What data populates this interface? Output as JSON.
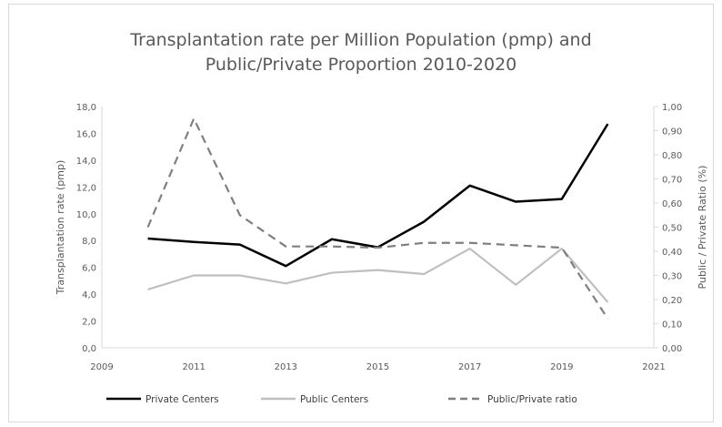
{
  "chart_data": {
    "type": "line",
    "title": [
      "Transplantation rate per Million Population (pmp) and",
      "Public/Private Proportion 2010-2020"
    ],
    "xlabel": "",
    "ylabel": "Transplantation rate (pmp)",
    "y2label": "Public / Private Ratio (%)",
    "xlim": [
      2009,
      2021
    ],
    "ylim": [
      0,
      18
    ],
    "y2lim": [
      0,
      1
    ],
    "x_ticks": [
      "2009",
      "2011",
      "2013",
      "2015",
      "2017",
      "2019",
      "2021"
    ],
    "y_ticks": [
      "0,0",
      "2,0",
      "4,0",
      "6,0",
      "8,0",
      "10,0",
      "12,0",
      "14,0",
      "16,0",
      "18,0"
    ],
    "y2_ticks": [
      "0,00",
      "0,10",
      "0,20",
      "0,30",
      "0,40",
      "0,50",
      "0,60",
      "0,70",
      "0,80",
      "0,90",
      "1,00"
    ],
    "x": [
      2010,
      2011,
      2012,
      2013,
      2014,
      2015,
      2016,
      2017,
      2018,
      2019,
      2020
    ],
    "series": [
      {
        "name": "Private Centers",
        "axis": "left",
        "color": "#000000",
        "dash": false,
        "values": [
          8.15,
          7.9,
          7.7,
          6.1,
          8.1,
          7.5,
          9.4,
          12.1,
          10.9,
          11.1,
          16.7
        ]
      },
      {
        "name": "Public Centers",
        "axis": "left",
        "color": "#bfbfbf",
        "dash": false,
        "values": [
          4.35,
          5.4,
          5.4,
          4.8,
          5.6,
          5.8,
          5.5,
          7.4,
          4.7,
          7.4,
          3.4
        ]
      },
      {
        "name": "Public/Private ratio",
        "axis": "right",
        "color": "#7f7f7f",
        "dash": true,
        "values": [
          0.5,
          0.95,
          0.55,
          0.42,
          0.42,
          0.415,
          0.435,
          0.435,
          0.425,
          0.415,
          0.12
        ]
      }
    ],
    "legend": "bottom",
    "grid": false
  }
}
